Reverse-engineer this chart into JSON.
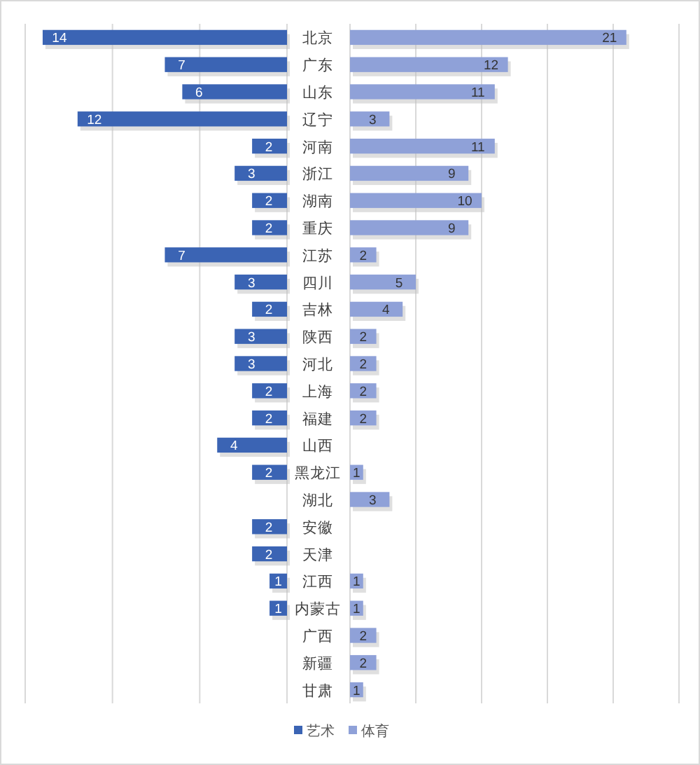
{
  "chart_data": [
    {
      "type": "bar",
      "orientation": "horizontal",
      "categories": [
        "北京",
        "广东",
        "山东",
        "辽宁",
        "河南",
        "浙江",
        "湖南",
        "重庆",
        "江苏",
        "四川",
        "吉林",
        "陕西",
        "河北",
        "上海",
        "福建",
        "山西",
        "黑龙江",
        "湖北",
        "安徽",
        "天津",
        "江西",
        "内蒙古",
        "广西",
        "新疆",
        "甘肃"
      ],
      "series": [
        {
          "name": "艺术",
          "color": "#3b64b4",
          "values": [
            14,
            7,
            6,
            12,
            2,
            3,
            2,
            2,
            7,
            3,
            2,
            3,
            3,
            2,
            2,
            4,
            2,
            null,
            2,
            2,
            1,
            1,
            null,
            null,
            null
          ]
        }
      ],
      "xlim": [
        15,
        0
      ],
      "xticks": [
        {
          "value": 0,
          "label": null
        },
        {
          "value": 5,
          "label": null
        },
        {
          "value": 10,
          "label": null
        },
        {
          "value": 15,
          "label": null
        }
      ],
      "grid": "x",
      "tick_labels": "y",
      "data_labels": true,
      "legend": "bottom"
    },
    {
      "type": "bar",
      "orientation": "horizontal",
      "categories": [
        null,
        null,
        null,
        null,
        null,
        null,
        null,
        null,
        null,
        null,
        null,
        null,
        null,
        null,
        null,
        null,
        null,
        null,
        null,
        null,
        null,
        null,
        null,
        null,
        null
      ],
      "series": [
        {
          "name": "体育",
          "color": "#8fa1d8",
          "values": [
            21,
            12,
            11,
            3,
            11,
            9,
            10,
            9,
            2,
            5,
            4,
            2,
            2,
            2,
            2,
            null,
            1,
            3,
            null,
            null,
            1,
            1,
            2,
            2,
            1
          ]
        }
      ],
      "xlim": [
        0,
        25
      ],
      "xticks": [
        {
          "value": 0,
          "label": null
        },
        {
          "value": 5,
          "label": null
        },
        {
          "value": 10,
          "label": null
        },
        {
          "value": 15,
          "label": null
        },
        {
          "value": 20,
          "label": null
        },
        {
          "value": 25,
          "label": null
        }
      ],
      "grid": "x",
      "data_labels": true,
      "legend": "bottom"
    }
  ]
}
